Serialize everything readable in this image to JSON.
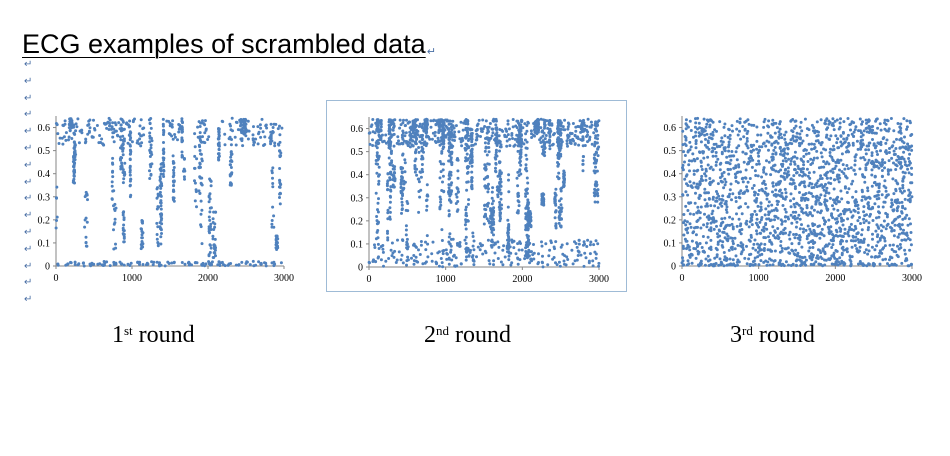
{
  "document": {
    "title": "ECG examples of scrambled data",
    "paragraph_mark": "↵"
  },
  "colors": {
    "points": "#4f81bd",
    "axis": "#868686",
    "frame": "#9fbbd6"
  },
  "captions": [
    {
      "ordinal": "1",
      "suffix": "st",
      "word": "round"
    },
    {
      "ordinal": "2",
      "suffix": "nd",
      "word": "round"
    },
    {
      "ordinal": "3",
      "suffix": "rd",
      "word": "round"
    }
  ],
  "chart_data": [
    {
      "type": "scatter",
      "title": "",
      "xlabel": "",
      "ylabel": "",
      "xlim": [
        0,
        3000
      ],
      "ylim": [
        0,
        0.65
      ],
      "xticks": [
        "0",
        "1000",
        "2000",
        "3000"
      ],
      "yticks": [
        "0",
        "0.1",
        "0.2",
        "0.3",
        "0.4",
        "0.5",
        "0.6"
      ],
      "grid": false,
      "legend": "none",
      "pattern": "clustered vertical streaks, dense near 0.6 and 0",
      "series": [
        {
          "points_approx": 900
        }
      ]
    },
    {
      "type": "scatter",
      "title": "",
      "xlabel": "",
      "ylabel": "",
      "xlim": [
        0,
        3000
      ],
      "ylim": [
        0,
        0.65
      ],
      "xticks": [
        "0",
        "1000",
        "2000",
        "3000"
      ],
      "yticks": [
        "0",
        "0.1",
        "0.2",
        "0.3",
        "0.4",
        "0.5",
        "0.6"
      ],
      "grid": false,
      "legend": "none",
      "pattern": "denser vertical streaks spread over full range",
      "series": [
        {
          "points_approx": 1700
        }
      ]
    },
    {
      "type": "scatter",
      "title": "",
      "xlabel": "",
      "ylabel": "",
      "xlim": [
        0,
        3000
      ],
      "ylim": [
        0,
        0.65
      ],
      "xticks": [
        "0",
        "1000",
        "2000",
        "3000"
      ],
      "yticks": [
        "0",
        "0.1",
        "0.2",
        "0.3",
        "0.4",
        "0.5",
        "0.6"
      ],
      "grid": false,
      "legend": "none",
      "pattern": "nearly uniform random scatter",
      "series": [
        {
          "points_approx": 2000
        }
      ]
    }
  ]
}
